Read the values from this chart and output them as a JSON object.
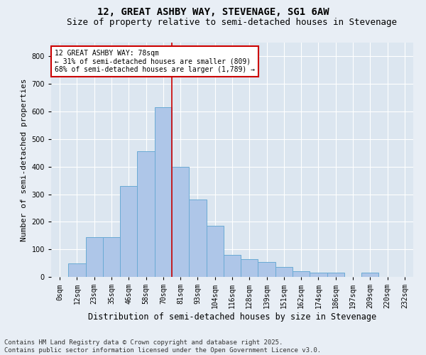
{
  "title": "12, GREAT ASHBY WAY, STEVENAGE, SG1 6AW",
  "subtitle": "Size of property relative to semi-detached houses in Stevenage",
  "xlabel": "Distribution of semi-detached houses by size in Stevenage",
  "ylabel": "Number of semi-detached properties",
  "footnote": "Contains HM Land Registry data © Crown copyright and database right 2025.\nContains public sector information licensed under the Open Government Licence v3.0.",
  "bar_labels": [
    "0sqm",
    "12sqm",
    "23sqm",
    "35sqm",
    "46sqm",
    "58sqm",
    "70sqm",
    "81sqm",
    "93sqm",
    "104sqm",
    "116sqm",
    "128sqm",
    "139sqm",
    "151sqm",
    "162sqm",
    "174sqm",
    "186sqm",
    "197sqm",
    "209sqm",
    "220sqm",
    "232sqm"
  ],
  "bar_values": [
    0,
    50,
    145,
    145,
    330,
    455,
    615,
    400,
    280,
    185,
    80,
    65,
    55,
    35,
    20,
    15,
    15,
    0,
    15,
    0,
    0
  ],
  "bar_color": "#aec6e8",
  "bar_edge_color": "#6aaad4",
  "vline_x_index": 6.5,
  "property_label": "12 GREAT ASHBY WAY: 78sqm",
  "smaller_pct": 31,
  "smaller_count": 809,
  "larger_pct": 68,
  "larger_count": 1789,
  "vline_color": "#cc0000",
  "annotation_box_color": "#cc0000",
  "ylim": [
    0,
    850
  ],
  "yticks": [
    0,
    100,
    200,
    300,
    400,
    500,
    600,
    700,
    800
  ],
  "background_color": "#e8eef5",
  "plot_background_color": "#dce6f0",
  "title_fontsize": 10,
  "subtitle_fontsize": 9,
  "ylabel_fontsize": 8,
  "xlabel_fontsize": 8.5,
  "tick_fontsize": 7,
  "annotation_fontsize": 7,
  "footnote_fontsize": 6.5
}
